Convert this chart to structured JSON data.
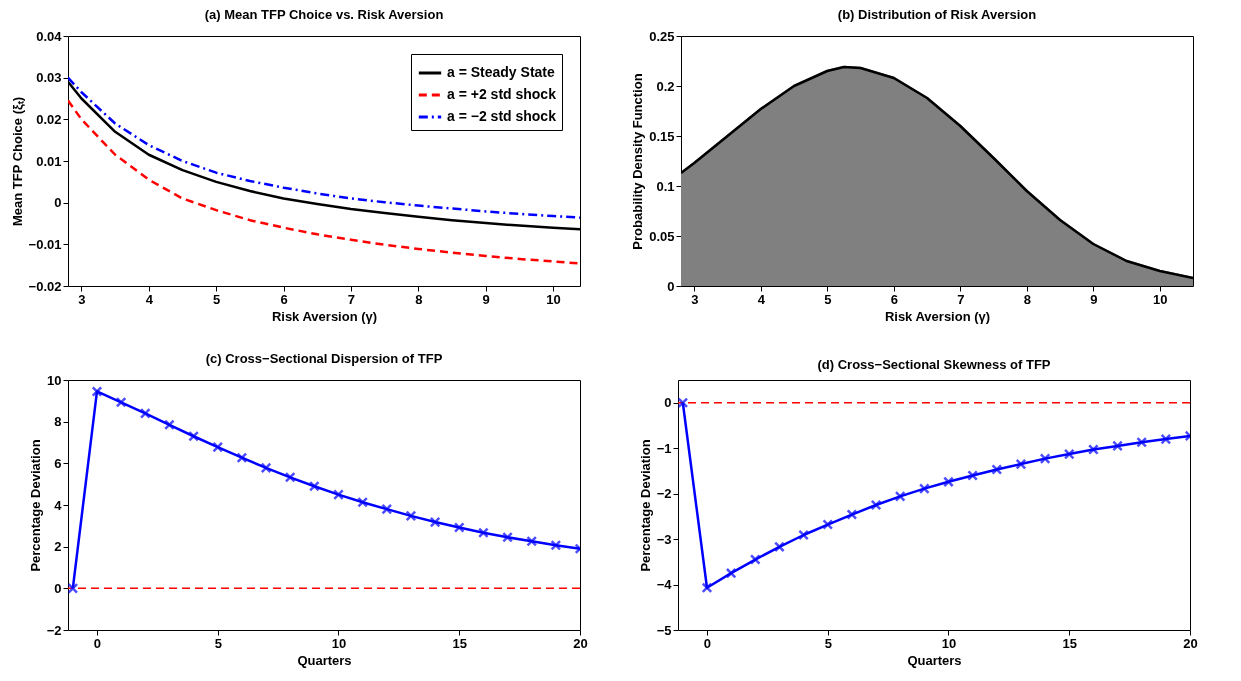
{
  "chart_data": [
    {
      "type": "line",
      "title": "(a) Mean TFP Choice vs. Risk Aversion",
      "xlabel": "Risk Aversion (γ)",
      "ylabel": "Mean TFP Choice (ξₜ)",
      "x": [
        2.8,
        3,
        3.5,
        4,
        4.5,
        5,
        5.5,
        6,
        6.5,
        7,
        7.5,
        8,
        8.5,
        9,
        9.5,
        10,
        10.4
      ],
      "series": [
        {
          "name": "a = Steady State",
          "color": "#000000",
          "line_style": "solid",
          "values": [
            0.029,
            0.025,
            0.017,
            0.0115,
            0.0078,
            0.005,
            0.0028,
            0.001,
            -0.0003,
            -0.0015,
            -0.0025,
            -0.0034,
            -0.0042,
            -0.0049,
            -0.0055,
            -0.006,
            -0.0064
          ]
        },
        {
          "name": "a = +2 std shock",
          "color": "#ff0000",
          "line_style": "dashed",
          "values": [
            0.0245,
            0.02,
            0.0115,
            0.0055,
            0.001,
            -0.0018,
            -0.0042,
            -0.006,
            -0.0076,
            -0.0089,
            -0.0101,
            -0.0111,
            -0.012,
            -0.0128,
            -0.0135,
            -0.0141,
            -0.0146
          ]
        },
        {
          "name": "a = −2 std shock",
          "color": "#0000ff",
          "line_style": "dashdot",
          "values": [
            0.03,
            0.0265,
            0.019,
            0.0138,
            0.01,
            0.0072,
            0.0052,
            0.0036,
            0.0022,
            0.001,
            0.0001,
            -0.0007,
            -0.0014,
            -0.0021,
            -0.0027,
            -0.0032,
            -0.0036
          ]
        }
      ],
      "xlim": [
        2.8,
        10.4
      ],
      "xticks": [
        3,
        4,
        5,
        6,
        7,
        8,
        9,
        10
      ],
      "ylim": [
        -0.02,
        0.04
      ],
      "yticks": [
        {
          "value": -0.02,
          "label": "−0.02"
        },
        {
          "value": -0.01,
          "label": "−0.01"
        },
        0,
        0.01,
        0.02,
        0.03,
        0.04
      ],
      "legend": "top right"
    },
    {
      "type": "area",
      "title": "(b) Distribution of Risk Aversion",
      "xlabel": "Risk Aversion (γ)",
      "ylabel": "Probability Density Function",
      "x": [
        2.8,
        3,
        3.5,
        4,
        4.5,
        5,
        5.25,
        5.5,
        6,
        6.5,
        7,
        7.5,
        8,
        8.5,
        9,
        9.5,
        10,
        10.5
      ],
      "series": [
        {
          "color": "#808080",
          "values": [
            0.113,
            0.123,
            0.15,
            0.177,
            0.2,
            0.215,
            0.219,
            0.218,
            0.208,
            0.188,
            0.16,
            0.128,
            0.095,
            0.066,
            0.042,
            0.025,
            0.015,
            0.008
          ]
        }
      ],
      "xlim": [
        2.8,
        10.5
      ],
      "xticks": [
        3,
        4,
        5,
        6,
        7,
        8,
        9,
        10
      ],
      "ylim": [
        0,
        0.25
      ],
      "yticks": [
        0,
        0.05,
        0.1,
        0.15,
        0.2,
        0.25
      ]
    },
    {
      "type": "line",
      "title": "(c) Cross−Sectional Dispersion of TFP",
      "xlabel": "Quarters",
      "ylabel": "Percentage Deviation",
      "x": [
        -1,
        0,
        1,
        2,
        3,
        4,
        5,
        6,
        7,
        8,
        9,
        10,
        11,
        12,
        13,
        14,
        15,
        16,
        17,
        18,
        19,
        20
      ],
      "series": [
        {
          "color": "#0000ff",
          "values": [
            0,
            9.45,
            8.93,
            8.4,
            7.85,
            7.3,
            6.78,
            6.27,
            5.78,
            5.33,
            4.9,
            4.5,
            4.13,
            3.8,
            3.48,
            3.18,
            2.92,
            2.67,
            2.45,
            2.26,
            2.07,
            1.9
          ]
        }
      ],
      "marker": "cross",
      "xlim": [
        -1.2,
        20
      ],
      "xticks": [
        0,
        5,
        10,
        15,
        20
      ],
      "ylim": [
        -2,
        10
      ],
      "yticks": [
        {
          "value": -2,
          "label": "−2"
        },
        0,
        2,
        4,
        6,
        8,
        10
      ],
      "ref_lines": [
        {
          "axis": "y",
          "value": 0,
          "color": "#ff0000",
          "line_style": "dashed"
        }
      ]
    },
    {
      "type": "line",
      "title": "(d) Cross−Sectional Skewness of TFP",
      "xlabel": "Quarters",
      "ylabel": "Percentage Deviation",
      "x": [
        -1,
        0,
        1,
        2,
        3,
        4,
        5,
        6,
        7,
        8,
        9,
        10,
        11,
        12,
        13,
        14,
        15,
        16,
        17,
        18,
        19,
        20
      ],
      "series": [
        {
          "color": "#0000ff",
          "values": [
            0,
            -4.07,
            -3.75,
            -3.45,
            -3.17,
            -2.91,
            -2.68,
            -2.46,
            -2.25,
            -2.06,
            -1.89,
            -1.74,
            -1.6,
            -1.47,
            -1.35,
            -1.23,
            -1.13,
            -1.03,
            -0.95,
            -0.87,
            -0.8,
            -0.73
          ]
        }
      ],
      "marker": "cross",
      "xlim": [
        -1.2,
        20
      ],
      "xticks": [
        0,
        5,
        10,
        15,
        20
      ],
      "ylim": [
        -5,
        0.5
      ],
      "yticks": [
        {
          "value": -5,
          "label": "−5"
        },
        {
          "value": -4,
          "label": "−4"
        },
        {
          "value": -3,
          "label": "−3"
        },
        {
          "value": -2,
          "label": "−2"
        },
        {
          "value": -1,
          "label": "−1"
        },
        0
      ],
      "ref_lines": [
        {
          "axis": "y",
          "value": 0,
          "color": "#ff0000",
          "line_style": "dashed"
        }
      ]
    }
  ]
}
